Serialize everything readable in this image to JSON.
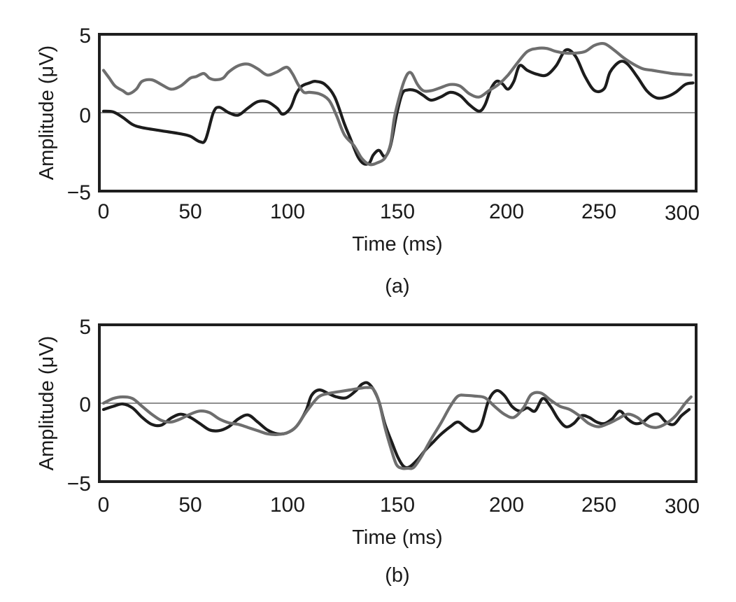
{
  "chart_data": [
    {
      "type": "line",
      "panel_label": "(a)",
      "xlabel": "Time (ms)",
      "ylabel": "Amplitude (μV)",
      "xlim": [
        -2,
        307
      ],
      "ylim": [
        -5,
        5
      ],
      "xticks": [
        "0",
        "50",
        "100",
        "150",
        "200",
        "250",
        "300"
      ],
      "xtick_values": [
        0,
        50,
        100,
        150,
        200,
        250,
        300
      ],
      "yticks": [
        "5",
        "0",
        "−5"
      ],
      "ytick_values": [
        5,
        0,
        -5
      ],
      "zero_line": true,
      "grid": false,
      "series": [
        {
          "name": "black trace",
          "color": "#1c1c1c",
          "x": [
            0,
            5,
            10,
            15,
            20,
            30,
            40,
            45,
            50,
            53,
            57,
            60,
            65,
            70,
            75,
            80,
            85,
            90,
            93,
            97,
            100,
            103,
            107,
            110,
            115,
            120,
            125,
            128,
            132,
            135,
            138,
            140,
            143,
            146,
            149,
            152,
            155,
            158,
            162,
            166,
            170,
            175,
            180,
            185,
            190,
            195,
            198,
            201,
            204,
            207,
            210,
            213,
            216,
            220,
            225,
            230,
            235,
            240,
            245,
            250,
            255,
            260,
            263,
            268,
            272,
            277,
            282,
            287,
            292,
            297,
            302,
            306
          ],
          "y": [
            0.1,
            0.05,
            -0.3,
            -0.75,
            -0.95,
            -1.15,
            -1.35,
            -1.5,
            -1.85,
            -1.7,
            0.0,
            0.35,
            0.0,
            -0.15,
            0.3,
            0.7,
            0.7,
            0.3,
            -0.1,
            0.3,
            1.2,
            1.7,
            1.9,
            2.0,
            1.8,
            1.0,
            -0.7,
            -1.6,
            -2.8,
            -3.25,
            -3.2,
            -2.7,
            -2.4,
            -2.8,
            -2.1,
            -0.2,
            1.2,
            1.45,
            1.4,
            1.1,
            0.8,
            1.0,
            1.3,
            1.1,
            0.5,
            0.1,
            0.5,
            1.5,
            2.0,
            1.85,
            1.5,
            2.0,
            3.0,
            2.7,
            2.45,
            2.4,
            3.0,
            4.0,
            3.6,
            2.3,
            1.4,
            1.55,
            2.6,
            3.25,
            3.1,
            2.3,
            1.4,
            0.95,
            1.0,
            1.3,
            1.8,
            1.9
          ]
        },
        {
          "name": "gray trace",
          "color": "#6e6e6e",
          "x": [
            0,
            3,
            6,
            10,
            13,
            17,
            20,
            25,
            30,
            35,
            40,
            45,
            48,
            52,
            55,
            58,
            62,
            65,
            70,
            75,
            80,
            85,
            90,
            95,
            98,
            101,
            104,
            107,
            112,
            117,
            121,
            125,
            130,
            134,
            138,
            142,
            146,
            149,
            151,
            154,
            156,
            158,
            160,
            163,
            166,
            170,
            175,
            180,
            185,
            190,
            195,
            200,
            205,
            210,
            215,
            220,
            225,
            230,
            235,
            240,
            245,
            250,
            255,
            260,
            265,
            270,
            275,
            280,
            285,
            290,
            295,
            300,
            305
          ],
          "y": [
            2.7,
            2.2,
            1.7,
            1.4,
            1.2,
            1.5,
            2.0,
            2.1,
            1.8,
            1.5,
            1.7,
            2.2,
            2.3,
            2.5,
            2.2,
            2.1,
            2.2,
            2.6,
            3.0,
            3.1,
            2.8,
            2.4,
            2.6,
            2.9,
            2.5,
            1.8,
            1.3,
            1.3,
            1.2,
            0.8,
            -0.2,
            -1.4,
            -2.1,
            -2.9,
            -3.3,
            -3.2,
            -2.9,
            -2.0,
            -0.3,
            1.2,
            2.0,
            2.5,
            2.5,
            1.8,
            1.4,
            1.4,
            1.6,
            1.8,
            1.7,
            1.2,
            1.0,
            1.4,
            1.8,
            2.4,
            3.2,
            3.9,
            4.1,
            4.1,
            3.9,
            3.8,
            3.8,
            3.9,
            4.3,
            4.4,
            4.0,
            3.5,
            3.1,
            2.8,
            2.7,
            2.6,
            2.5,
            2.45,
            2.4
          ]
        }
      ]
    },
    {
      "type": "line",
      "panel_label": "(b)",
      "xlabel": "Time (ms)",
      "ylabel": "Amplitude (μV)",
      "xlim": [
        -2,
        307
      ],
      "ylim": [
        -5,
        5
      ],
      "xticks": [
        "0",
        "50",
        "100",
        "150",
        "200",
        "250",
        "300"
      ],
      "xtick_values": [
        0,
        50,
        100,
        150,
        200,
        250,
        300
      ],
      "yticks": [
        "5",
        "0",
        "−5"
      ],
      "ytick_values": [
        5,
        0,
        -5
      ],
      "zero_line": true,
      "grid": false,
      "series": [
        {
          "name": "black trace",
          "color": "#1c1c1c",
          "x": [
            0,
            5,
            10,
            15,
            20,
            25,
            30,
            35,
            40,
            45,
            50,
            55,
            60,
            65,
            70,
            75,
            80,
            85,
            90,
            95,
            100,
            105,
            108,
            112,
            117,
            121,
            126,
            131,
            134,
            137,
            140,
            143,
            146,
            150,
            153,
            156,
            159,
            163,
            167,
            171,
            175,
            180,
            184,
            188,
            192,
            196,
            200,
            204,
            208,
            212,
            216,
            220,
            224,
            228,
            232,
            236,
            240,
            244,
            248,
            252,
            256,
            260,
            264,
            268,
            272,
            276,
            280,
            284,
            288,
            292,
            296,
            300,
            304
          ],
          "y": [
            -0.4,
            -0.2,
            -0.05,
            -0.3,
            -0.9,
            -1.35,
            -1.4,
            -0.95,
            -0.7,
            -0.9,
            -1.3,
            -1.7,
            -1.75,
            -1.5,
            -1.0,
            -0.75,
            -1.2,
            -1.7,
            -1.95,
            -1.9,
            -1.5,
            -0.5,
            0.5,
            0.85,
            0.6,
            0.4,
            0.35,
            0.8,
            1.2,
            1.3,
            0.9,
            0.1,
            -1.3,
            -2.6,
            -3.5,
            -4.05,
            -4.05,
            -3.6,
            -3.0,
            -2.5,
            -2.0,
            -1.5,
            -1.2,
            -1.55,
            -1.8,
            -1.4,
            0.2,
            0.8,
            0.5,
            -0.2,
            -0.5,
            -0.3,
            -0.5,
            0.3,
            -0.2,
            -1.0,
            -1.5,
            -1.3,
            -0.8,
            -0.9,
            -1.2,
            -1.3,
            -1.0,
            -0.5,
            -1.0,
            -1.3,
            -1.2,
            -0.8,
            -0.7,
            -1.2,
            -1.35,
            -0.8,
            -0.4
          ]
        },
        {
          "name": "gray trace",
          "color": "#6e6e6e",
          "x": [
            0,
            5,
            10,
            15,
            20,
            25,
            30,
            35,
            40,
            45,
            50,
            55,
            60,
            65,
            70,
            75,
            80,
            85,
            90,
            95,
            100,
            105,
            110,
            113,
            118,
            123,
            128,
            133,
            137,
            140,
            143,
            146,
            149,
            152,
            155,
            158,
            161,
            165,
            170,
            175,
            180,
            184,
            188,
            193,
            198,
            203,
            208,
            213,
            218,
            222,
            227,
            232,
            237,
            242,
            247,
            252,
            257,
            262,
            267,
            272,
            277,
            282,
            287,
            292,
            297,
            302,
            305
          ],
          "y": [
            0.0,
            0.3,
            0.4,
            0.3,
            -0.2,
            -0.7,
            -1.1,
            -1.2,
            -1.0,
            -0.7,
            -0.5,
            -0.6,
            -1.0,
            -1.25,
            -1.35,
            -1.55,
            -1.75,
            -1.95,
            -2.0,
            -1.9,
            -1.5,
            -0.6,
            0.2,
            0.5,
            0.65,
            0.75,
            0.85,
            0.95,
            1.0,
            0.9,
            0.1,
            -1.5,
            -2.8,
            -3.9,
            -4.15,
            -4.15,
            -4.1,
            -3.4,
            -2.3,
            -1.3,
            -0.2,
            0.45,
            0.5,
            0.45,
            0.35,
            -0.2,
            -0.7,
            -0.9,
            -0.3,
            0.55,
            0.65,
            0.2,
            -0.2,
            -0.4,
            -0.8,
            -1.3,
            -1.5,
            -1.3,
            -1.0,
            -0.7,
            -0.9,
            -1.4,
            -1.55,
            -1.3,
            -0.8,
            0.0,
            0.4
          ]
        }
      ]
    }
  ]
}
